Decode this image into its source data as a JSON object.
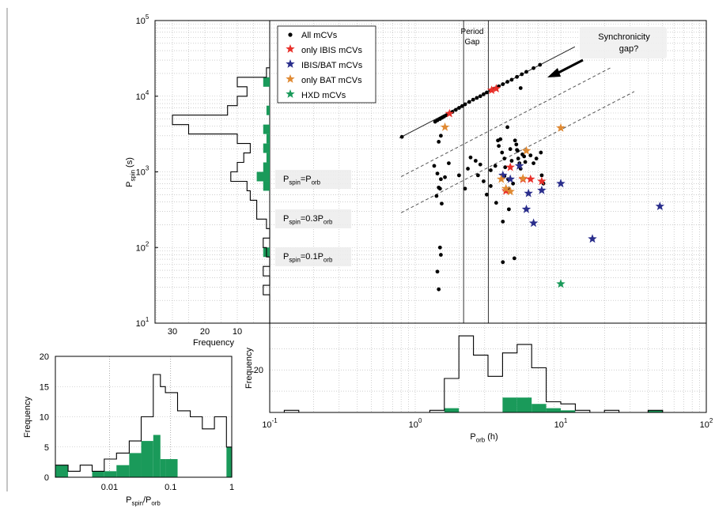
{
  "chart_data": [
    {
      "id": "main",
      "type": "scatter",
      "xlabel_main": "P",
      "xlabel_sub": "orb",
      "xlabel_unit": " (h)",
      "ylabel_main": "P",
      "ylabel_sub": "spin",
      "ylabel_unit": " (s)",
      "xscale": "log",
      "yscale": "log",
      "xlim": [
        0.1,
        100
      ],
      "ylim": [
        10,
        100000
      ],
      "x_ticks": [
        {
          "base": "10",
          "exp": "-1",
          "value": 0.1
        },
        {
          "base": "10",
          "exp": "0",
          "value": 1
        },
        {
          "base": "10",
          "exp": "1",
          "value": 10
        },
        {
          "base": "10",
          "exp": "2",
          "value": 100
        }
      ],
      "y_ticks": [
        {
          "base": "10",
          "exp": "1",
          "value": 10
        },
        {
          "base": "10",
          "exp": "2",
          "value": 100
        },
        {
          "base": "10",
          "exp": "3",
          "value": 1000
        },
        {
          "base": "10",
          "exp": "4",
          "value": 10000
        },
        {
          "base": "10",
          "exp": "5",
          "value": 100000
        }
      ],
      "grid": "dotted",
      "legend_position": "top-left",
      "series": [
        {
          "name": "All mCVs",
          "marker": "dot",
          "color": "#000000",
          "points": [
            [
              0.81,
              2900
            ],
            [
              1.37,
              4600
            ],
            [
              1.42,
              4800
            ],
            [
              1.48,
              5000
            ],
            [
              1.53,
              5200
            ],
            [
              1.58,
              5400
            ],
            [
              1.64,
              5600
            ],
            [
              1.7,
              5900
            ],
            [
              1.8,
              6200
            ],
            [
              1.9,
              6600
            ],
            [
              2.0,
              7000
            ],
            [
              2.1,
              7400
            ],
            [
              2.2,
              7800
            ],
            [
              2.35,
              8400
            ],
            [
              2.5,
              9000
            ],
            [
              2.65,
              9500
            ],
            [
              2.8,
              10000
            ],
            [
              2.95,
              10600
            ],
            [
              3.1,
              11200
            ],
            [
              3.3,
              11900
            ],
            [
              3.5,
              12600
            ],
            [
              3.75,
              13500
            ],
            [
              4.0,
              14400
            ],
            [
              4.3,
              15500
            ],
            [
              4.6,
              16500
            ],
            [
              5.0,
              18000
            ],
            [
              5.4,
              19500
            ],
            [
              5.8,
              21000
            ],
            [
              6.5,
              23500
            ],
            [
              7.2,
              26000
            ],
            [
              1.35,
              1200
            ],
            [
              1.42,
              950
            ],
            [
              1.5,
              800
            ],
            [
              1.45,
              2500
            ],
            [
              1.5,
              3000
            ],
            [
              1.45,
              620
            ],
            [
              1.48,
              600
            ],
            [
              1.4,
              480
            ],
            [
              1.52,
              380
            ],
            [
              1.48,
              100
            ],
            [
              1.5,
              80
            ],
            [
              1.42,
              48
            ],
            [
              1.45,
              28
            ],
            [
              1.6,
              850
            ],
            [
              1.7,
              1300
            ],
            [
              2.0,
              900
            ],
            [
              2.2,
              600
            ],
            [
              2.3,
              1100
            ],
            [
              2.4,
              1550
            ],
            [
              2.6,
              1400
            ],
            [
              2.7,
              900
            ],
            [
              2.8,
              1250
            ],
            [
              2.95,
              750
            ],
            [
              3.1,
              500
            ],
            [
              3.3,
              650
            ],
            [
              3.3,
              1050
            ],
            [
              3.55,
              1200
            ],
            [
              3.7,
              2600
            ],
            [
              3.75,
              2200
            ],
            [
              3.85,
              2700
            ],
            [
              3.95,
              1800
            ],
            [
              4.1,
              1500
            ],
            [
              4.15,
              1150
            ],
            [
              4.35,
              800
            ],
            [
              4.4,
              600
            ],
            [
              4.5,
              2000
            ],
            [
              4.6,
              1400
            ],
            [
              4.7,
              700
            ],
            [
              4.85,
              2600
            ],
            [
              4.95,
              2300
            ],
            [
              5.05,
              1900
            ],
            [
              5.1,
              1500
            ],
            [
              5.2,
              1300
            ],
            [
              5.3,
              1100
            ],
            [
              5.45,
              1700
            ],
            [
              5.6,
              1600
            ],
            [
              5.8,
              1900
            ],
            [
              6.2,
              1650
            ],
            [
              6.5,
              1300
            ],
            [
              6.8,
              1500
            ],
            [
              7.3,
              1800
            ],
            [
              7.4,
              900
            ],
            [
              7.6,
              700
            ],
            [
              4.3,
              3900
            ],
            [
              5.0,
              1950
            ],
            [
              4.0,
              220
            ],
            [
              4.8,
              72
            ],
            [
              4.0,
              64
            ],
            [
              5.3,
              12800
            ],
            [
              3.6,
              390
            ],
            [
              4.1,
              880
            ],
            [
              4.4,
              320
            ],
            [
              5.7,
              1350
            ]
          ]
        },
        {
          "name": "only IBIS mCVs",
          "marker": "star",
          "color": "#e8302a",
          "points": [
            [
              1.72,
              5900
            ],
            [
              3.35,
              12000
            ],
            [
              3.6,
              12600
            ],
            [
              4.2,
              560
            ],
            [
              4.5,
              1150
            ],
            [
              5.5,
              800
            ],
            [
              6.2,
              800
            ],
            [
              7.4,
              750
            ]
          ]
        },
        {
          "name": "IBIS/BAT mCVs",
          "marker": "star",
          "color": "#2a2e8c",
          "points": [
            [
              4.0,
              900
            ],
            [
              4.5,
              800
            ],
            [
              5.2,
              1200
            ],
            [
              5.8,
              320
            ],
            [
              6.0,
              520
            ],
            [
              6.5,
              210
            ],
            [
              7.4,
              570
            ],
            [
              10.0,
              700
            ],
            [
              16.5,
              130
            ],
            [
              48.0,
              350
            ]
          ]
        },
        {
          "name": "only BAT mCVs",
          "marker": "star",
          "color": "#e08a33",
          "points": [
            [
              1.6,
              3900
            ],
            [
              3.9,
              800
            ],
            [
              4.2,
              600
            ],
            [
              4.5,
              550
            ],
            [
              5.5,
              820
            ],
            [
              5.8,
              1900
            ],
            [
              10.0,
              3800
            ]
          ]
        },
        {
          "name": "HXD mCVs",
          "marker": "star",
          "color": "#1a9a5a",
          "points": [
            [
              10.0,
              33
            ]
          ]
        }
      ],
      "reference_lines": [
        {
          "label_main": "P",
          "label_sub1": "spin",
          "label_mid": "=P",
          "label_sub2": "orb",
          "ratio": 1,
          "style": "solid"
        },
        {
          "label_main": "P",
          "label_sub1": "spin",
          "label_mid": "=0.3P",
          "label_sub2": "orb",
          "ratio": 0.3,
          "style": "dashed"
        },
        {
          "label_main": "P",
          "label_sub1": "spin",
          "label_mid": "=0.1P",
          "label_sub2": "orb",
          "ratio": 0.1,
          "style": "dashed"
        }
      ],
      "period_gap": {
        "label_line1": "Period",
        "label_line2": "Gap",
        "x_from": 2.15,
        "x_to": 3.18
      },
      "annotation": {
        "line1": "Synchronicity",
        "line2": "gap?"
      }
    },
    {
      "id": "left_hist",
      "type": "bar",
      "orientation": "horizontal",
      "xlabel": "Frequency",
      "xlim": [
        0,
        37
      ],
      "x_reversed": true,
      "x_ticks": [
        "30",
        "20",
        "10"
      ],
      "x_tick_values": [
        30,
        20,
        10
      ],
      "bins_log10_pspin": [
        1.0,
        1.125,
        1.25,
        1.375,
        1.5,
        1.625,
        1.75,
        1.875,
        2.0,
        2.125,
        2.25,
        2.375,
        2.5,
        2.625,
        2.75,
        2.875,
        3.0,
        3.125,
        3.25,
        3.375,
        3.5,
        3.625,
        3.75,
        3.875,
        4.0,
        4.125,
        4.25,
        4.375,
        4.5
      ],
      "all_counts": [
        0,
        0,
        0,
        2,
        0,
        2,
        0,
        1,
        2,
        0,
        1,
        4,
        4,
        6,
        7,
        12,
        10,
        8,
        6,
        10,
        25,
        30,
        13,
        10,
        7,
        10,
        1,
        0
      ],
      "hxd_counts": [
        0,
        0,
        0,
        0,
        0,
        0,
        0,
        2,
        0,
        0,
        0,
        0,
        0,
        0,
        2,
        4,
        2,
        1,
        2,
        1,
        2,
        0,
        1,
        0,
        0,
        2,
        0,
        0
      ]
    },
    {
      "id": "bottom_hist",
      "type": "bar",
      "xlabel_main": "P",
      "xlabel_sub": "orb",
      "xlabel_unit": " (h)",
      "ylabel": "Frequency",
      "xscale": "log",
      "xlim": [
        0.1,
        100
      ],
      "ylim": [
        0,
        42
      ],
      "y_ticks": [
        "20"
      ],
      "y_tick_values": [
        20
      ],
      "bins_log10_porb": [
        -1.0,
        -0.9,
        -0.8,
        -0.7,
        -0.6,
        -0.5,
        -0.4,
        -0.3,
        -0.2,
        -0.1,
        0.0,
        0.1,
        0.2,
        0.3,
        0.4,
        0.5,
        0.6,
        0.7,
        0.8,
        0.9,
        1.0,
        1.1,
        1.2,
        1.3,
        1.4,
        1.5,
        1.6,
        1.7,
        1.8,
        1.9,
        2.0
      ],
      "all_counts": [
        0,
        1,
        0,
        0,
        0,
        0,
        0,
        0,
        0,
        0,
        0,
        1,
        16,
        36,
        27,
        17,
        28,
        32,
        21,
        5,
        4,
        1,
        0,
        1,
        0,
        0,
        1,
        0,
        0,
        0
      ],
      "hxd_counts": [
        0,
        0,
        0,
        0,
        0,
        0,
        0,
        0,
        0,
        0,
        0,
        0,
        2,
        0,
        0,
        0,
        7,
        7,
        4,
        2,
        1,
        0,
        0,
        0,
        0,
        0,
        1,
        0,
        0,
        0
      ]
    },
    {
      "id": "ratio_hist",
      "type": "bar",
      "xlabel_main": "P",
      "xlabel_sub1": "spin",
      "xlabel_mid": "/P",
      "xlabel_sub2": "orb",
      "ylabel": "Frequency",
      "xscale": "log",
      "xlim": [
        0.0013,
        1.0
      ],
      "ylim": [
        0,
        20
      ],
      "x_ticks": [
        {
          "label": "0.01",
          "value": 0.01
        },
        {
          "label": "0.1",
          "value": 0.1
        },
        {
          "label": "1",
          "value": 1
        }
      ],
      "y_ticks": [
        "0",
        "5",
        "10",
        "15",
        "20"
      ],
      "y_tick_values": [
        0,
        5,
        10,
        15,
        20
      ],
      "bin_edges": [
        0.0013,
        0.0021,
        0.0033,
        0.0052,
        0.0082,
        0.013,
        0.021,
        0.033,
        0.052,
        0.068,
        0.082,
        0.13,
        0.21,
        0.33,
        0.52,
        0.82,
        1.0
      ],
      "all_counts": [
        2,
        1,
        2,
        1,
        3,
        4,
        6,
        10,
        17,
        15,
        14,
        11,
        10,
        8,
        10,
        5
      ],
      "hxd_counts": [
        2,
        0,
        0,
        1,
        1,
        2,
        4,
        6,
        7,
        3,
        3,
        0,
        0,
        0,
        0,
        5
      ]
    }
  ]
}
